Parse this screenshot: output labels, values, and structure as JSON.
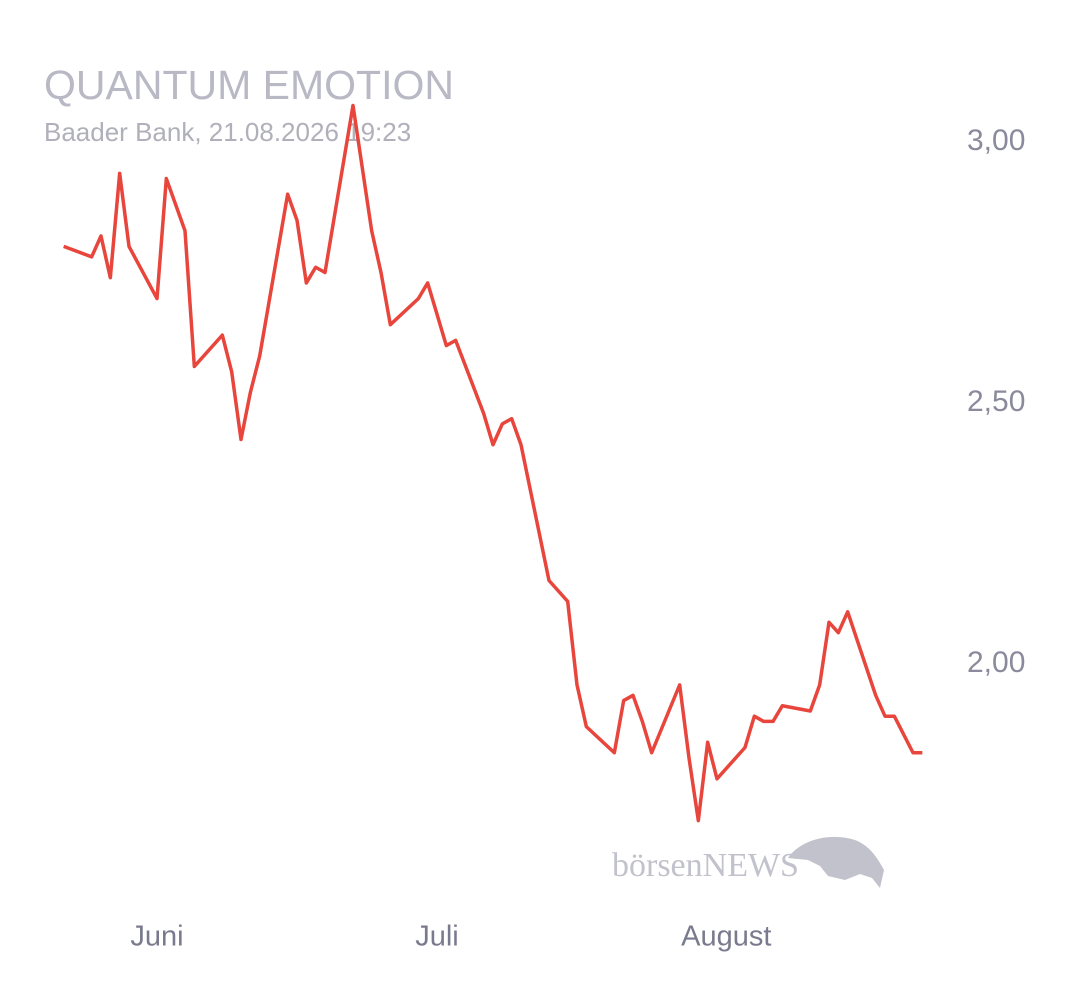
{
  "chart_data": {
    "type": "line",
    "title": "QUANTUM EMOTION",
    "subtitle": "Baader Bank, 21.08.2026 19:23",
    "watermark": "börsenNEWS",
    "x": [
      -10,
      -7,
      -6,
      -5,
      -4,
      -3,
      0,
      1,
      3,
      4,
      7,
      8,
      9,
      10,
      11,
      14,
      15,
      16,
      17,
      18,
      21,
      22,
      23,
      24,
      25,
      28,
      29,
      30,
      31,
      32,
      35,
      36,
      37,
      38,
      39,
      42,
      44,
      45,
      46,
      49,
      50,
      51,
      52,
      53,
      56,
      57,
      58,
      59,
      60,
      63,
      64,
      65,
      66,
      67,
      70,
      71,
      72,
      73,
      74,
      77,
      78,
      79,
      81,
      82
    ],
    "series": [
      {
        "color": "#e8453c",
        "values": [
          2.8,
          2.78,
          2.82,
          2.74,
          2.94,
          2.8,
          2.7,
          2.93,
          2.83,
          2.57,
          2.63,
          2.56,
          2.43,
          2.52,
          2.59,
          2.9,
          2.85,
          2.73,
          2.76,
          2.75,
          3.07,
          2.95,
          2.83,
          2.75,
          2.65,
          2.7,
          2.73,
          2.67,
          2.61,
          2.62,
          2.48,
          2.42,
          2.46,
          2.47,
          2.42,
          2.16,
          2.12,
          1.96,
          1.88,
          1.83,
          1.93,
          1.94,
          1.89,
          1.83,
          1.96,
          1.82,
          1.7,
          1.85,
          1.78,
          1.84,
          1.9,
          1.89,
          1.89,
          1.92,
          1.91,
          1.96,
          2.08,
          2.06,
          2.1,
          1.94,
          1.9,
          1.9,
          1.83,
          1.83
        ]
      }
    ],
    "xlim": [
      -12,
      84
    ],
    "xticks": [
      {
        "value": 0,
        "label": "Juni"
      },
      {
        "value": 30,
        "label": "Juli"
      },
      {
        "value": 61,
        "label": "August"
      }
    ],
    "ylim": [
      1.6,
      3.2
    ],
    "yticks": [
      {
        "value": 2,
        "label": "2,00"
      },
      {
        "value": 2.5,
        "label": "2,50"
      },
      {
        "value": 3,
        "label": "3,00"
      }
    ],
    "grid": false
  }
}
